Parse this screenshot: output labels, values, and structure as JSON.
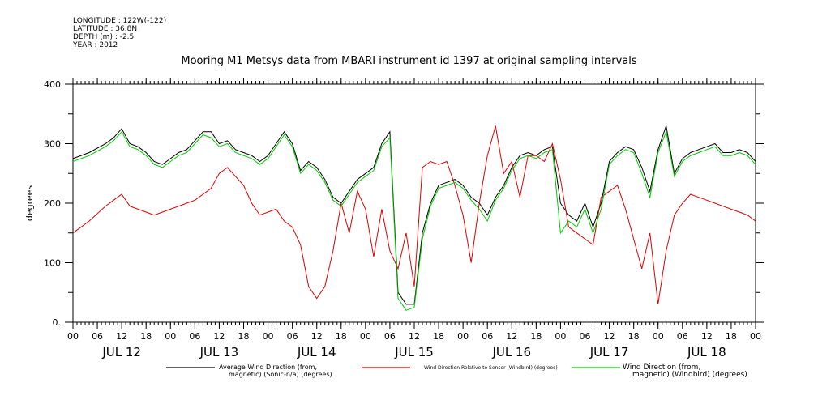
{
  "header": {
    "longitude": "LONGITUDE : 122W(-122)",
    "latitude": "LATITUDE : 36.8N",
    "depth": "DEPTH (m) : -2.5",
    "year": "YEAR : 2012"
  },
  "chart_data": {
    "type": "line",
    "title": "Mooring M1 Metsys data from MBARI instrument id 1397 at original sampling intervals",
    "ylabel": "degrees",
    "ylim": [
      0,
      400
    ],
    "xlim_hours": [
      0,
      168
    ],
    "y_ticks": [
      "0.",
      "100",
      "200",
      "300",
      "400"
    ],
    "x_hour_ticks": [
      "00",
      "06",
      "12",
      "18",
      "00",
      "06",
      "12",
      "18",
      "00",
      "06",
      "12",
      "18",
      "00",
      "06",
      "12",
      "18",
      "00",
      "06",
      "12",
      "18",
      "00",
      "06",
      "12",
      "18",
      "00",
      "06",
      "12",
      "18",
      "00"
    ],
    "day_labels": [
      "JUL 12",
      "JUL 13",
      "JUL 14",
      "JUL 15",
      "JUL 16",
      "JUL 17",
      "JUL 18"
    ],
    "grid": false,
    "legend_position": "bottom",
    "series": [
      {
        "name": "Average Wind Direction (from, magnetic) (Sonic-n/a) (degrees)",
        "legend_line1": "Average Wind Direction (from,",
        "legend_line2": "magnetic) (Sonic-n/a) (degrees)",
        "color": "#000000",
        "x": [
          0,
          4,
          8,
          10,
          12,
          14,
          16,
          18,
          20,
          22,
          24,
          26,
          28,
          30,
          32,
          34,
          36,
          38,
          40,
          42,
          44,
          46,
          48,
          50,
          52,
          54,
          56,
          58,
          60,
          62,
          64,
          66,
          68,
          70,
          72,
          74,
          76,
          78,
          80,
          82,
          84,
          86,
          88,
          90,
          92,
          94,
          96,
          98,
          100,
          102,
          104,
          106,
          108,
          110,
          112,
          114,
          116,
          118,
          120,
          122,
          124,
          126,
          128,
          130,
          132,
          134,
          136,
          138,
          140,
          142,
          144,
          146,
          148,
          150,
          152,
          154,
          156,
          158,
          160,
          162,
          164,
          166,
          168
        ],
        "values": [
          275,
          285,
          300,
          310,
          325,
          300,
          295,
          285,
          270,
          265,
          275,
          285,
          290,
          305,
          320,
          320,
          300,
          305,
          290,
          285,
          280,
          270,
          280,
          300,
          320,
          300,
          255,
          270,
          260,
          240,
          210,
          200,
          220,
          240,
          250,
          260,
          300,
          320,
          50,
          30,
          30,
          150,
          200,
          230,
          235,
          240,
          230,
          210,
          200,
          180,
          210,
          230,
          260,
          280,
          285,
          280,
          290,
          295,
          200,
          180,
          170,
          200,
          160,
          200,
          270,
          285,
          295,
          290,
          260,
          220,
          290,
          330,
          250,
          275,
          285,
          290,
          295,
          300,
          285,
          285,
          290,
          285,
          270
        ]
      },
      {
        "name": "Wind Direction Relative to Sensor (Windbird) (degrees)",
        "legend_line1": "Wind Direction Relative to Sensor (Windbird) (degrees)",
        "legend_line2": "",
        "color": "#dd0000",
        "x": [
          0,
          4,
          8,
          10,
          12,
          14,
          16,
          18,
          20,
          22,
          24,
          26,
          28,
          30,
          32,
          34,
          36,
          38,
          40,
          42,
          44,
          46,
          48,
          50,
          52,
          54,
          56,
          58,
          60,
          62,
          64,
          66,
          68,
          70,
          72,
          74,
          76,
          78,
          80,
          82,
          84,
          86,
          88,
          90,
          92,
          94,
          96,
          98,
          100,
          102,
          104,
          106,
          108,
          110,
          112,
          114,
          116,
          118,
          120,
          122,
          124,
          126,
          128,
          130,
          132,
          134,
          136,
          138,
          140,
          142,
          144,
          146,
          148,
          150,
          152,
          154,
          156,
          158,
          160,
          162,
          164,
          166,
          168
        ],
        "values": [
          150,
          170,
          195,
          205,
          215,
          195,
          190,
          185,
          180,
          185,
          190,
          195,
          200,
          205,
          215,
          225,
          250,
          260,
          245,
          230,
          200,
          180,
          185,
          190,
          170,
          160,
          130,
          60,
          40,
          60,
          120,
          200,
          150,
          220,
          190,
          110,
          190,
          120,
          90,
          150,
          60,
          260,
          270,
          265,
          270,
          230,
          180,
          100,
          200,
          280,
          330,
          250,
          270,
          210,
          280,
          280,
          270,
          300,
          240,
          160,
          150,
          140,
          130,
          210,
          220,
          230,
          190,
          140,
          90,
          150,
          30,
          120,
          180,
          200,
          215,
          210,
          205,
          200,
          195,
          190,
          185,
          180,
          170
        ]
      },
      {
        "name": "Wind Direction (from, magnetic) (Windbird) (degrees)",
        "legend_line1": "Wind Direction (from,",
        "legend_line2": "magnetic) (Windbird) (degrees)",
        "color": "#00cc00",
        "x": [
          0,
          4,
          8,
          10,
          12,
          14,
          16,
          18,
          20,
          22,
          24,
          26,
          28,
          30,
          32,
          34,
          36,
          38,
          40,
          42,
          44,
          46,
          48,
          50,
          52,
          54,
          56,
          58,
          60,
          62,
          64,
          66,
          68,
          70,
          72,
          74,
          76,
          78,
          80,
          82,
          84,
          86,
          88,
          90,
          92,
          94,
          96,
          98,
          100,
          102,
          104,
          106,
          108,
          110,
          112,
          114,
          116,
          118,
          120,
          122,
          124,
          126,
          128,
          130,
          132,
          134,
          136,
          138,
          140,
          142,
          144,
          146,
          148,
          150,
          152,
          154,
          156,
          158,
          160,
          162,
          164,
          166,
          168
        ],
        "values": [
          270,
          280,
          295,
          305,
          320,
          295,
          290,
          280,
          265,
          260,
          270,
          280,
          285,
          300,
          315,
          310,
          295,
          300,
          285,
          280,
          275,
          265,
          275,
          295,
          315,
          295,
          250,
          265,
          255,
          235,
          205,
          195,
          215,
          235,
          245,
          255,
          295,
          310,
          40,
          20,
          25,
          140,
          195,
          225,
          230,
          235,
          225,
          205,
          190,
          170,
          205,
          225,
          255,
          275,
          280,
          275,
          285,
          290,
          150,
          170,
          160,
          190,
          150,
          190,
          265,
          280,
          290,
          285,
          250,
          210,
          285,
          320,
          245,
          270,
          280,
          285,
          290,
          295,
          280,
          280,
          285,
          280,
          265
        ]
      }
    ]
  }
}
